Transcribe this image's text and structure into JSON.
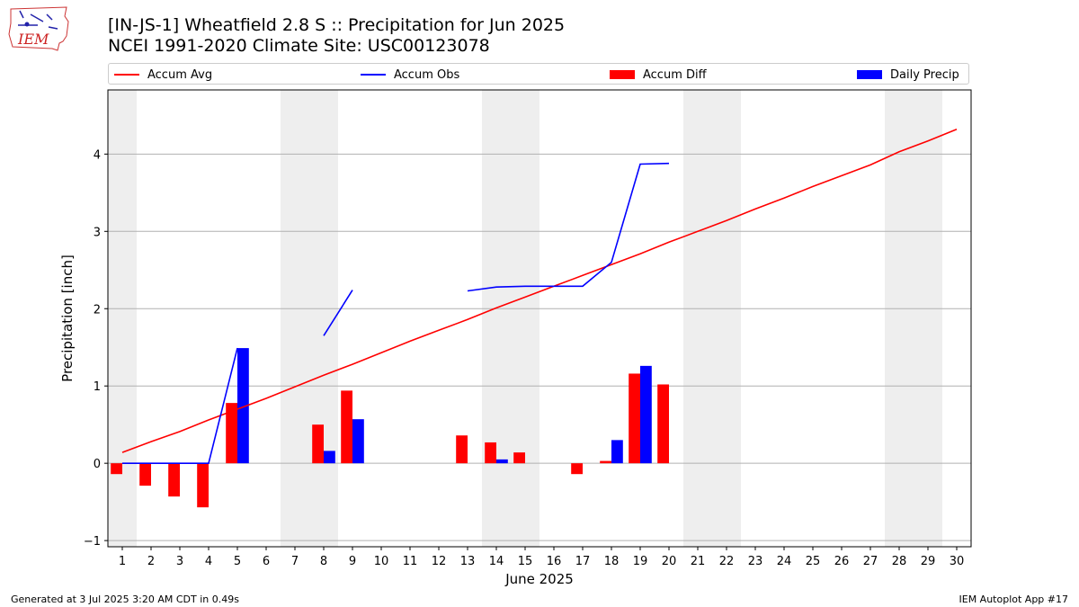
{
  "header": {
    "title_line1": "[IN-JS-1] Wheatfield 2.8 S :: Precipitation for Jun 2025",
    "title_line2": "NCEI 1991-2020 Climate Site: USC00123078",
    "logo_text": "IEM"
  },
  "footer": {
    "generated": "Generated at 3 Jul 2025 3:20 AM CDT in 0.49s",
    "app": "IEM Autoplot App #17"
  },
  "legend": {
    "accum_avg": "Accum Avg",
    "accum_obs": "Accum Obs",
    "accum_diff": "Accum Diff",
    "daily_precip": "Daily Precip"
  },
  "colors": {
    "accum_avg": "#ff0000",
    "accum_obs": "#0000ff",
    "accum_diff": "#ff0000",
    "daily_precip": "#0000ff",
    "weekend_shade": "#eeeeee",
    "grid": "#b0b0b0"
  },
  "chart_data": {
    "type": "bar",
    "xlabel": "June 2025",
    "ylabel": "Precipitation [inch]",
    "xlim": [
      0.5,
      30.5
    ],
    "ylim": [
      -1.08,
      4.83
    ],
    "yticks": [
      -1,
      0,
      1,
      2,
      3,
      4
    ],
    "grid": "horizontal",
    "legend_placement": "top, above plot",
    "days": [
      1,
      2,
      3,
      4,
      5,
      6,
      7,
      8,
      9,
      10,
      11,
      12,
      13,
      14,
      15,
      16,
      17,
      18,
      19,
      20,
      21,
      22,
      23,
      24,
      25,
      26,
      27,
      28,
      29,
      30
    ],
    "weekend_days": [
      1,
      7,
      8,
      14,
      15,
      21,
      22,
      28,
      29
    ],
    "series": [
      {
        "name": "Accum Avg",
        "kind": "line",
        "x": [
          1,
          2,
          3,
          4,
          5,
          6,
          7,
          8,
          9,
          10,
          11,
          12,
          13,
          14,
          15,
          16,
          17,
          18,
          19,
          20,
          21,
          22,
          23,
          24,
          25,
          26,
          27,
          28,
          29,
          30
        ],
        "values": [
          0.14,
          0.28,
          0.41,
          0.56,
          0.7,
          0.84,
          0.99,
          1.14,
          1.28,
          1.43,
          1.58,
          1.72,
          1.86,
          2.01,
          2.15,
          2.29,
          2.43,
          2.57,
          2.71,
          2.86,
          3.0,
          3.14,
          3.29,
          3.43,
          3.58,
          3.72,
          3.86,
          4.03,
          4.17,
          4.32
        ]
      },
      {
        "name": "Accum Obs",
        "kind": "line",
        "x": [
          1,
          2,
          3,
          4,
          5,
          6,
          7,
          8,
          9,
          10,
          11,
          12,
          13,
          14,
          15,
          16,
          17,
          18,
          19,
          20
        ],
        "values": [
          0,
          0,
          0,
          0,
          1.49,
          null,
          null,
          1.65,
          2.24,
          null,
          null,
          null,
          2.23,
          2.28,
          2.29,
          2.29,
          2.29,
          2.6,
          3.87,
          3.88
        ]
      },
      {
        "name": "Accum Diff",
        "kind": "bar",
        "x": [
          1,
          2,
          3,
          4,
          5,
          8,
          9,
          13,
          14,
          15,
          17,
          18,
          19,
          20
        ],
        "values": [
          -0.14,
          -0.29,
          -0.43,
          -0.57,
          0.78,
          0.5,
          0.94,
          0.36,
          0.27,
          0.14,
          -0.14,
          0.03,
          1.16,
          1.02
        ]
      },
      {
        "name": "Daily Precip",
        "kind": "bar",
        "x": [
          5,
          8,
          9,
          14,
          18,
          19
        ],
        "values": [
          1.49,
          0.16,
          0.57,
          0.05,
          0.3,
          1.26
        ]
      }
    ]
  }
}
